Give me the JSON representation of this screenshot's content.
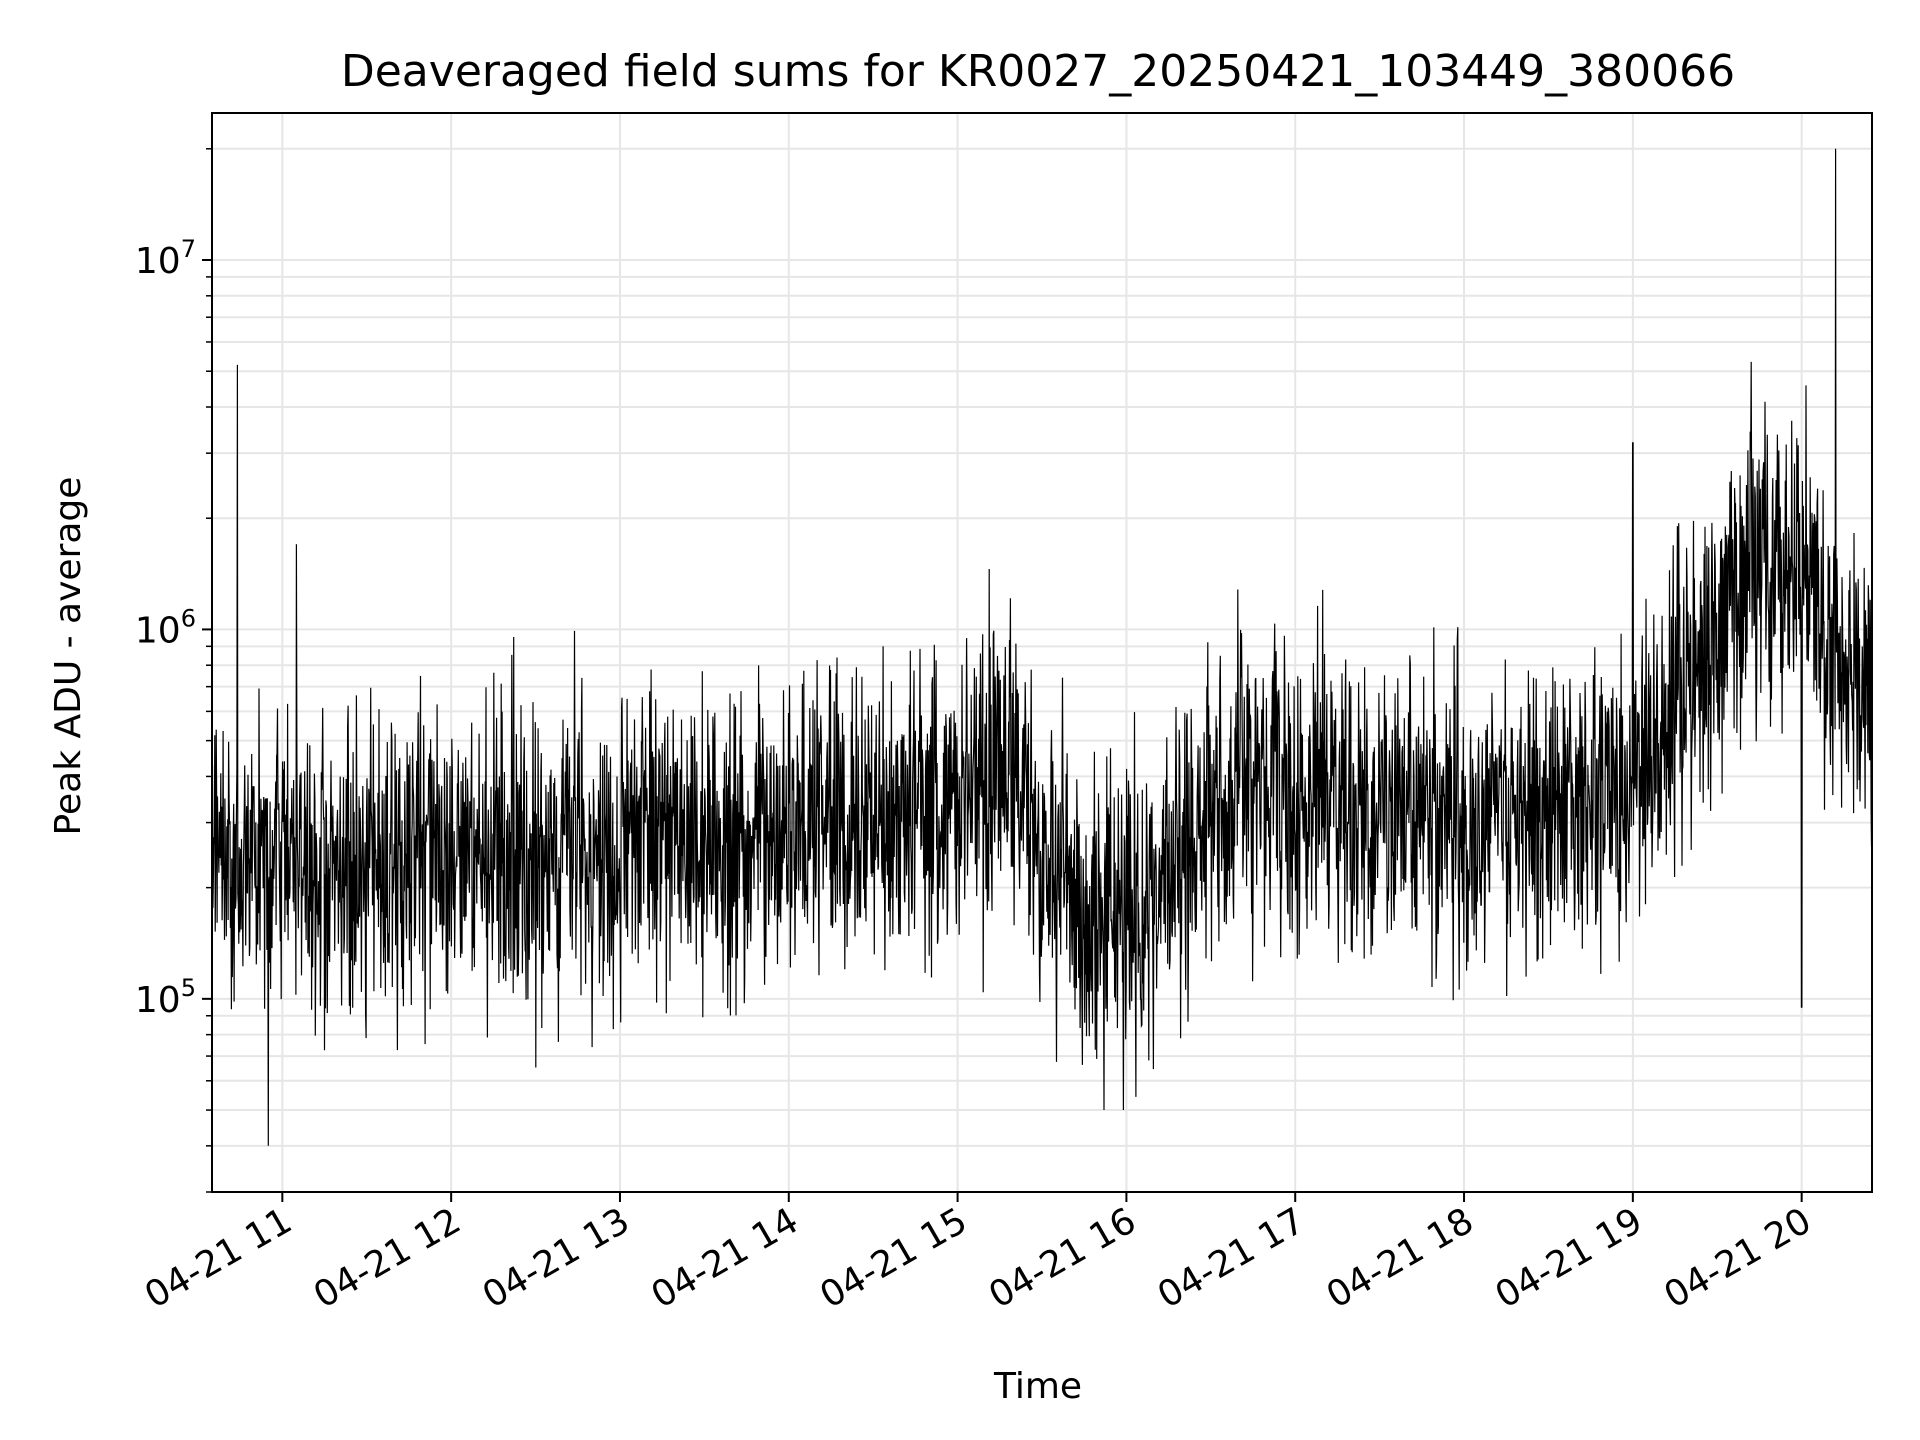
{
  "chart_data": {
    "type": "line",
    "title": "Deaveraged field sums for KR0027_20250421_103449_380066",
    "xlabel": "Time",
    "ylabel": "Peak ADU - average",
    "x_range": [
      "2025-04-21 10:35",
      "2025-04-21 20:25"
    ],
    "y_scale": "log",
    "ylim": [
      30000,
      25000000
    ],
    "grid": true,
    "x_ticks": [
      {
        "value": "2025-04-21 11:00",
        "label": "04-21 11"
      },
      {
        "value": "2025-04-21 12:00",
        "label": "04-21 12"
      },
      {
        "value": "2025-04-21 13:00",
        "label": "04-21 13"
      },
      {
        "value": "2025-04-21 14:00",
        "label": "04-21 14"
      },
      {
        "value": "2025-04-21 15:00",
        "label": "04-21 15"
      },
      {
        "value": "2025-04-21 16:00",
        "label": "04-21 16"
      },
      {
        "value": "2025-04-21 17:00",
        "label": "04-21 17"
      },
      {
        "value": "2025-04-21 18:00",
        "label": "04-21 18"
      },
      {
        "value": "2025-04-21 19:00",
        "label": "04-21 19"
      },
      {
        "value": "2025-04-21 20:00",
        "label": "04-21 20"
      }
    ],
    "y_ticks": [
      {
        "value": 100000,
        "base": "10",
        "exp": "5"
      },
      {
        "value": 1000000,
        "base": "10",
        "exp": "6"
      },
      {
        "value": 10000000,
        "base": "10",
        "exp": "7"
      }
    ],
    "line_color": "#000000",
    "grid_color": "#e6e6e6",
    "series": [
      {
        "x": [
          "2025-04-21 10:35",
          "2025-04-21 10:40",
          "2025-04-21 10:45",
          "2025-04-21 10:50",
          "2025-04-21 10:55",
          "2025-04-21 11:00",
          "2025-04-21 11:10",
          "2025-04-21 11:20",
          "2025-04-21 11:30",
          "2025-04-21 11:40",
          "2025-04-21 11:50",
          "2025-04-21 12:00",
          "2025-04-21 12:10",
          "2025-04-21 12:20",
          "2025-04-21 12:30",
          "2025-04-21 12:40",
          "2025-04-21 12:50",
          "2025-04-21 13:00",
          "2025-04-21 13:10",
          "2025-04-21 13:20",
          "2025-04-21 13:30",
          "2025-04-21 13:40",
          "2025-04-21 13:50",
          "2025-04-21 14:00",
          "2025-04-21 14:10",
          "2025-04-21 14:20",
          "2025-04-21 14:30",
          "2025-04-21 14:40",
          "2025-04-21 14:50",
          "2025-04-21 15:00",
          "2025-04-21 15:10",
          "2025-04-21 15:20",
          "2025-04-21 15:30",
          "2025-04-21 15:40",
          "2025-04-21 15:50",
          "2025-04-21 16:00",
          "2025-04-21 16:10",
          "2025-04-21 16:20",
          "2025-04-21 16:30",
          "2025-04-21 16:40",
          "2025-04-21 16:50",
          "2025-04-21 17:00",
          "2025-04-21 17:10",
          "2025-04-21 17:20",
          "2025-04-21 17:30",
          "2025-04-21 17:40",
          "2025-04-21 17:50",
          "2025-04-21 18:00",
          "2025-04-21 18:10",
          "2025-04-21 18:20",
          "2025-04-21 18:30",
          "2025-04-21 18:40",
          "2025-04-21 18:50",
          "2025-04-21 19:00",
          "2025-04-21 19:10",
          "2025-04-21 19:20",
          "2025-04-21 19:30",
          "2025-04-21 19:40",
          "2025-04-21 19:50",
          "2025-04-21 20:00",
          "2025-04-21 20:10",
          "2025-04-21 20:20",
          "2025-04-21 20:25"
        ],
        "y": [
          250000,
          240000,
          230000,
          260000,
          240000,
          250000,
          240000,
          230000,
          240000,
          260000,
          250000,
          250000,
          240000,
          240000,
          230000,
          250000,
          240000,
          260000,
          290000,
          300000,
          290000,
          270000,
          280000,
          290000,
          310000,
          300000,
          290000,
          310000,
          330000,
          360000,
          390000,
          420000,
          230000,
          200000,
          170000,
          180000,
          190000,
          230000,
          350000,
          380000,
          380000,
          370000,
          360000,
          340000,
          330000,
          350000,
          330000,
          300000,
          320000,
          300000,
          320000,
          330000,
          340000,
          420000,
          520000,
          700000,
          950000,
          1400000,
          1600000,
          1500000,
          900000,
          750000,
          780000
        ]
      }
    ],
    "spikes": [
      {
        "x": "2025-04-21 10:44",
        "y": 5200000
      },
      {
        "x": "2025-04-21 10:55",
        "y": 40000
      },
      {
        "x": "2025-04-21 11:05",
        "y": 1700000
      },
      {
        "x": "2025-04-21 15:52",
        "y": 50000
      },
      {
        "x": "2025-04-21 15:59",
        "y": 50000
      },
      {
        "x": "2025-04-21 19:00",
        "y": 3200000
      },
      {
        "x": "2025-04-21 19:42",
        "y": 5300000
      },
      {
        "x": "2025-04-21 20:00",
        "y": 95000
      },
      {
        "x": "2025-04-21 20:12",
        "y": 20000000
      }
    ]
  }
}
